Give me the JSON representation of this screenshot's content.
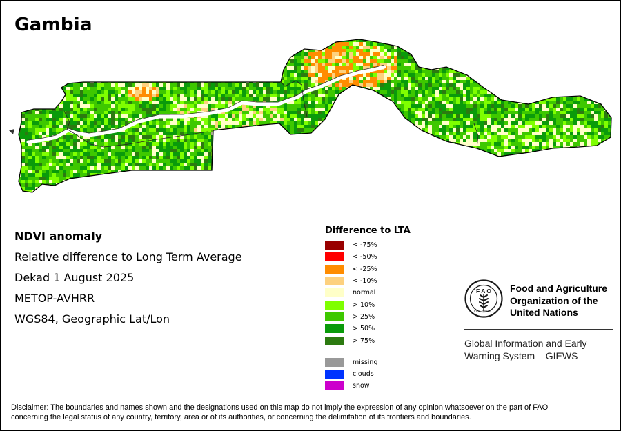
{
  "map": {
    "title": "Gambia",
    "country": "Gambia",
    "features": [
      "country-boundary",
      "gambia-river",
      "internal-boundaries",
      "ndvi-anomaly-raster"
    ]
  },
  "metadata": {
    "heading": "NDVI anomaly",
    "lines": [
      "Relative difference to Long Term Average",
      "Dekad 1 August 2025",
      "METOP-AVHRR",
      "WGS84, Geographic Lat/Lon"
    ]
  },
  "legend": {
    "title": "Difference to LTA",
    "classes": [
      {
        "label": "< -75%",
        "color": "#990000"
      },
      {
        "label": "< -50%",
        "color": "#ff0000"
      },
      {
        "label": "< -25%",
        "color": "#ff8c00"
      },
      {
        "label": "< -10%",
        "color": "#fdd17f"
      },
      {
        "label": "normal",
        "color": "#ffffc8"
      },
      {
        "label": "> 10%",
        "color": "#7fff00"
      },
      {
        "label": "> 25%",
        "color": "#3ec800"
      },
      {
        "label": "> 50%",
        "color": "#0a9b0a"
      },
      {
        "label": "> 75%",
        "color": "#2c7a10"
      }
    ],
    "extra": [
      {
        "label": "missing",
        "color": "#999999"
      },
      {
        "label": "clouds",
        "color": "#0033ff"
      },
      {
        "label": "snow",
        "color": "#cc00cc"
      }
    ]
  },
  "organization": {
    "logo_text": "FIAT PANIS",
    "name_lines": [
      "Food and Agriculture",
      "Organization of the",
      "United Nations"
    ],
    "system_lines": [
      "Global Information and Early",
      "Warning System – GIEWS"
    ]
  },
  "disclaimer": {
    "lines": [
      "Disclaimer: The boundaries and names shown and the designations used on this map do not imply the expression of any opinion whatsoever on the part of FAO",
      "concerning the legal status of any country, territory, area or of its authorities, or concerning the delimitation of its frontiers and boundaries."
    ]
  }
}
